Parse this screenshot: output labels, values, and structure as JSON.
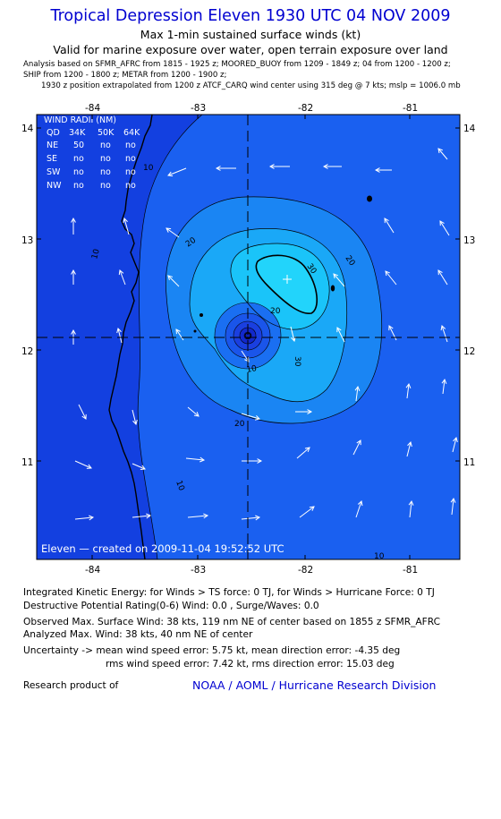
{
  "header": {
    "title": "Tropical Depression Eleven 1930 UTC 04 NOV 2009",
    "subtitle1": "Max 1-min sustained surface winds (kt)",
    "subtitle2": "Valid for marine exposure over water, open terrain exposure over land",
    "analysis_line1": "Analysis based on  SFMR_AFRC from 1815 - 1925 z;  MOORED_BUOY from 1209 - 1849 z;  04 from 1200 - 1200 z;",
    "analysis_line2": "SHIP from 1200 - 1800 z;  METAR from 1200 - 1900 z;",
    "analysis_line3": "1930 z position extrapolated from 1200 z ATCF_CARQ wind center using 315 deg @ 7 kts; mslp = 1006.0 mb"
  },
  "map": {
    "lon_ticks": [
      "-84",
      "-83",
      "-82",
      "-81"
    ],
    "lat_ticks": [
      "14",
      "13",
      "12",
      "11"
    ],
    "lon_range": [
      -84.55,
      -80.55
    ],
    "lat_range": [
      10.3,
      14.3
    ],
    "center": {
      "lon": -82.0,
      "lat": 12.1
    },
    "max_wind_label": {
      "lon": -81.78,
      "lat": 12.62
    },
    "contour_labels": [
      "10",
      "20",
      "30",
      "10",
      "20",
      "30",
      "20",
      "20",
      "10",
      "10",
      "10"
    ],
    "created_text": "Eleven  —  created on 2009-11-04 19:52:52 UTC",
    "colors": {
      "ocean_outer": "#1340e0",
      "band_10_20": "#1a60f0",
      "band_20_30": "#1a90f5",
      "band_30_plus": "#1ab8f8",
      "max_core": "#20d0fa",
      "center_dark": "#1020c0",
      "coastline": "#000000",
      "arrow": "#ffffff"
    }
  },
  "wind_radii": {
    "title": "WIND RADII (NM)",
    "header": [
      "QD",
      "34K",
      "50K",
      "64K"
    ],
    "rows": [
      [
        "NE",
        "50",
        "no",
        "no"
      ],
      [
        "SE",
        "no",
        "no",
        "no"
      ],
      [
        "SW",
        "no",
        "no",
        "no"
      ],
      [
        "NW",
        "no",
        "no",
        "no"
      ]
    ]
  },
  "footer": {
    "ike": "Integrated Kinetic Energy:  for Winds > TS force: 0 TJ,  for Winds > Hurricane Force: 0 TJ",
    "dpr": "Destructive Potential Rating(0-6)   Wind: 0.0 , Surge/Waves: 0.0",
    "observed": "Observed Max. Surface Wind: 38 kts, 119 nm NE of center based on 1855 z SFMR_AFRC",
    "analyzed": "Analyzed Max. Wind: 38 kts, 40 nm NE of center",
    "uncertainty1": "Uncertainty -> mean wind speed error: 5.75 kt,   mean direction error:  -4.35 deg",
    "uncertainty2": "rms wind speed error: 7.42 kt,   rms direction error: 15.03 deg",
    "research": "Research product of",
    "org_link": "NOAA / AOML / Hurricane Research Division"
  }
}
